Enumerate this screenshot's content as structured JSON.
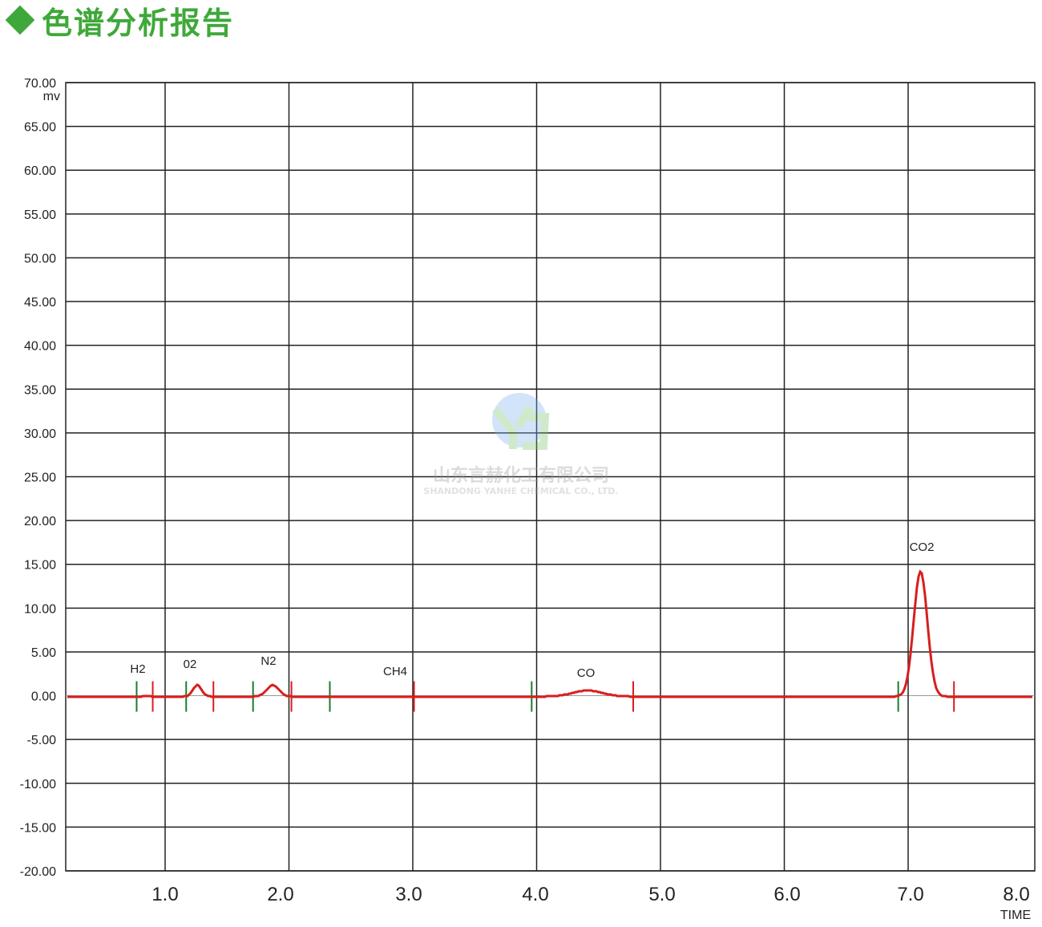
{
  "title": "色谱分析报告",
  "colors": {
    "title": "#3fa83a",
    "trace": "#d81e1e",
    "start_marker": "#1e7a32",
    "end_marker": "#d81e1e",
    "grid": "#222222",
    "baseline": "#999999"
  },
  "watermark": {
    "company_cn": "山东言赫化工有限公司",
    "company_en": "SHANDONG YANHE CHEMICAL CO., LTD."
  },
  "chart_data": {
    "type": "line",
    "title": "",
    "xlabel": "TIME",
    "ylabel": "mv",
    "xlim": [
      0.2,
      8.0
    ],
    "ylim": [
      -20,
      70
    ],
    "grid": true,
    "x_ticks": [
      "1.0",
      "2.0",
      "3.0",
      "4.0",
      "5.0",
      "6.0",
      "7.0",
      "8.0"
    ],
    "y_ticks": [
      "70.00",
      "65.00",
      "60.00",
      "55.00",
      "50.00",
      "45.00",
      "40.00",
      "35.00",
      "30.00",
      "25.00",
      "20.00",
      "15.00",
      "10.00",
      "5.00",
      "0.00",
      "-5.00",
      "-10.00",
      "-15.00",
      "-20.00"
    ],
    "peaks": [
      {
        "label": "H2",
        "time": 0.85,
        "height": 0.1,
        "width": 0.02,
        "start": 0.77,
        "end": 0.9
      },
      {
        "label": "02",
        "time": 1.26,
        "height": 1.3,
        "width": 0.035,
        "start": 1.17,
        "end": 1.39
      },
      {
        "label": "N2",
        "time": 1.87,
        "height": 1.3,
        "width": 0.05,
        "start": 1.71,
        "end": 2.02
      },
      {
        "label": "CH4",
        "time": 2.95,
        "height": 0.0,
        "width": 0.05,
        "start": 2.33,
        "end": 3.01
      },
      {
        "label": "CO",
        "time": 4.41,
        "height": 0.7,
        "width": 0.12,
        "start": 3.96,
        "end": 4.78
      },
      {
        "label": "CO2",
        "time": 7.1,
        "height": 14.3,
        "width": 0.055,
        "start": 6.92,
        "end": 7.37
      }
    ]
  }
}
